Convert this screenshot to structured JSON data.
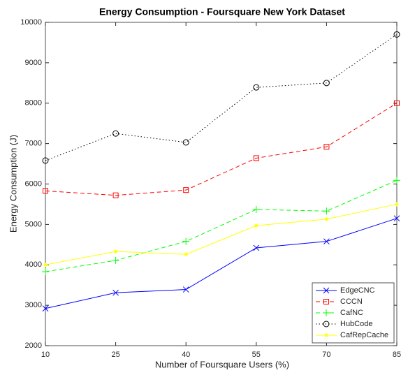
{
  "chart_data": {
    "type": "line",
    "title": "Energy Consumption - Foursquare New York Dataset",
    "x_label": "Number of Foursquare Users (%)",
    "y_label": "Energy Consumption (J)",
    "x": [
      10,
      25,
      40,
      55,
      70,
      85
    ],
    "xlim": [
      10,
      85
    ],
    "xticks": [
      10,
      25,
      40,
      55,
      70,
      85
    ],
    "ylim": [
      2000,
      10000
    ],
    "yticks": [
      2000,
      3000,
      4000,
      5000,
      6000,
      7000,
      8000,
      9000,
      10000
    ],
    "grid": false,
    "legend": "lower right",
    "series": [
      {
        "name": "EdgeCNC",
        "color": "#0000ff",
        "linestyle": "solid",
        "marker": "x",
        "values": [
          2920,
          3310,
          3390,
          4420,
          4580,
          5150
        ]
      },
      {
        "name": "CCCN",
        "color": "#ff0000",
        "linestyle": "dashed",
        "marker": "square",
        "values": [
          5830,
          5720,
          5850,
          6640,
          6920,
          8000
        ]
      },
      {
        "name": "CafNC",
        "color": "#00ff00",
        "linestyle": "dashed",
        "marker": "plus",
        "values": [
          3830,
          4110,
          4580,
          5370,
          5330,
          6090
        ]
      },
      {
        "name": "HubCode",
        "color": "#000000",
        "linestyle": "dotted",
        "marker": "circle",
        "values": [
          6580,
          7250,
          7030,
          8390,
          8500,
          9700
        ]
      },
      {
        "name": "CafRepCache",
        "color": "#ffff00",
        "linestyle": "solid",
        "marker": "star",
        "values": [
          4000,
          4330,
          4260,
          4970,
          5130,
          5500
        ]
      }
    ]
  }
}
